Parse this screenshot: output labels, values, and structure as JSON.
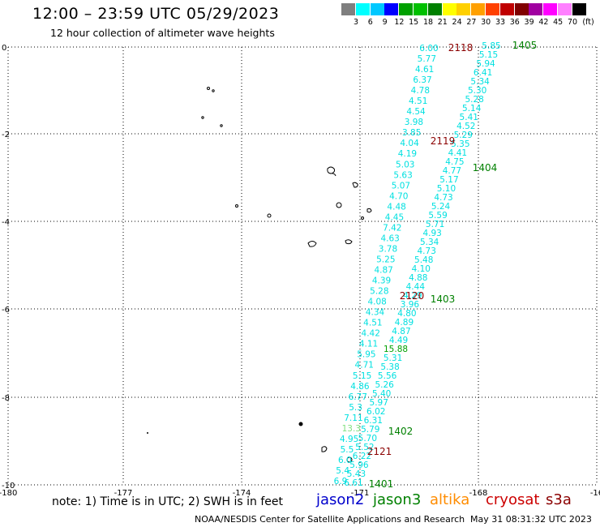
{
  "header": {
    "title": "12:00 – 23:59 UTC 05/29/2023",
    "subtitle": "12 hour collection of altimeter wave heights"
  },
  "scale": {
    "unit_label": "(ft)",
    "bins": [
      {
        "label": "3",
        "color": "#7f7f7f"
      },
      {
        "label": "6",
        "color": "#00ffff"
      },
      {
        "label": "9",
        "color": "#00c8ff"
      },
      {
        "label": "12",
        "color": "#0000ff"
      },
      {
        "label": "15",
        "color": "#00a000"
      },
      {
        "label": "18",
        "color": "#00c000"
      },
      {
        "label": "21",
        "color": "#008000"
      },
      {
        "label": "24",
        "color": "#ffff00"
      },
      {
        "label": "27",
        "color": "#ffd000"
      },
      {
        "label": "30",
        "color": "#ffa000"
      },
      {
        "label": "33",
        "color": "#ff4000"
      },
      {
        "label": "36",
        "color": "#c00000"
      },
      {
        "label": "39",
        "color": "#800000"
      },
      {
        "label": "42",
        "color": "#a000a0"
      },
      {
        "label": "45",
        "color": "#ff00ff"
      },
      {
        "label": "70",
        "color": "#ff80ff"
      },
      {
        "label": "",
        "color": "#000000"
      }
    ]
  },
  "map": {
    "lon_ticks": [
      "-180",
      "-177",
      "-174",
      "-171",
      "-168",
      "-16"
    ],
    "lat_ticks": [
      "0",
      "-2",
      "-4",
      "-6",
      "-8",
      "-10"
    ],
    "grid": true,
    "track_labels": [
      {
        "text": "2118",
        "color": "#8b0000"
      },
      {
        "text": "1405",
        "color": "#008000"
      },
      {
        "text": "2119",
        "color": "#8b0000"
      },
      {
        "text": "1404",
        "color": "#008000"
      },
      {
        "text": "2120",
        "color": "#8b0000"
      },
      {
        "text": "1403",
        "color": "#008000"
      },
      {
        "text": "1402",
        "color": "#008000"
      },
      {
        "text": "2121",
        "color": "#8b0000"
      },
      {
        "text": "1401",
        "color": "#008000"
      }
    ],
    "obs_color": "#00e0e0",
    "obs_colors_special": {
      "15.88": "#00a000",
      "13.3": "#80e080"
    },
    "left_track": [
      "6.00",
      "5.77",
      "4.61",
      "6.37",
      "4.78",
      "4.51",
      "4.54",
      "3.98",
      "3.85",
      "4.04",
      "4.19",
      "5.03",
      "5.63",
      "5.07",
      "4.70",
      "4.48",
      "4.45",
      "7.42",
      "4.63",
      "3.78",
      "5.25",
      "4.87",
      "4.39",
      "5.28",
      "4.08",
      "4.34",
      "4.51",
      "4.42",
      "4.11",
      "5.95",
      "4.71",
      "5.15",
      "4.86",
      "6.77",
      "5.3",
      "7.11",
      "13.3",
      "4.95",
      "5.5",
      "6.0",
      "5.4",
      "6.9"
    ],
    "right_track": [
      "5.85",
      "5.15",
      "5.94",
      "6.41",
      "5.34",
      "5.30",
      "5.28",
      "5.14",
      "5.41",
      "4.52",
      "5.29",
      "5.35",
      "4.41",
      "4.75",
      "4.77",
      "5.17",
      "5.10",
      "4.73",
      "5.24",
      "5.59",
      "5.71",
      "4.93",
      "5.34",
      "4.73",
      "5.48",
      "4.10",
      "4.88",
      "4.44",
      "4.29",
      "3.96",
      "4.80",
      "4.89",
      "4.87",
      "4.49",
      "15.88",
      "5.31",
      "5.38",
      "5.56",
      "5.26",
      "5.40",
      "5.97",
      "6.02",
      "6.31",
      "5.79",
      "5.70",
      "5.52",
      "6.22",
      "5.96",
      "5.43",
      "6.61"
    ]
  },
  "legend": {
    "note": "note:  1) Time is in UTC;  2) SWH is in feet",
    "missions": [
      {
        "label": "jason2",
        "color": "#0000cc"
      },
      {
        "label": "jason3",
        "color": "#008000"
      },
      {
        "label": "altika",
        "color": "#ff8c00"
      },
      {
        "label": "cryosat",
        "color": "#cc0000"
      },
      {
        "label": "s3a",
        "color": "#8b0000"
      }
    ]
  },
  "footer": {
    "credit": "NOAA/NESDIS Center for Satellite Applications and Research",
    "timestamp": "May 31 08:31:32 UTC 2023"
  }
}
